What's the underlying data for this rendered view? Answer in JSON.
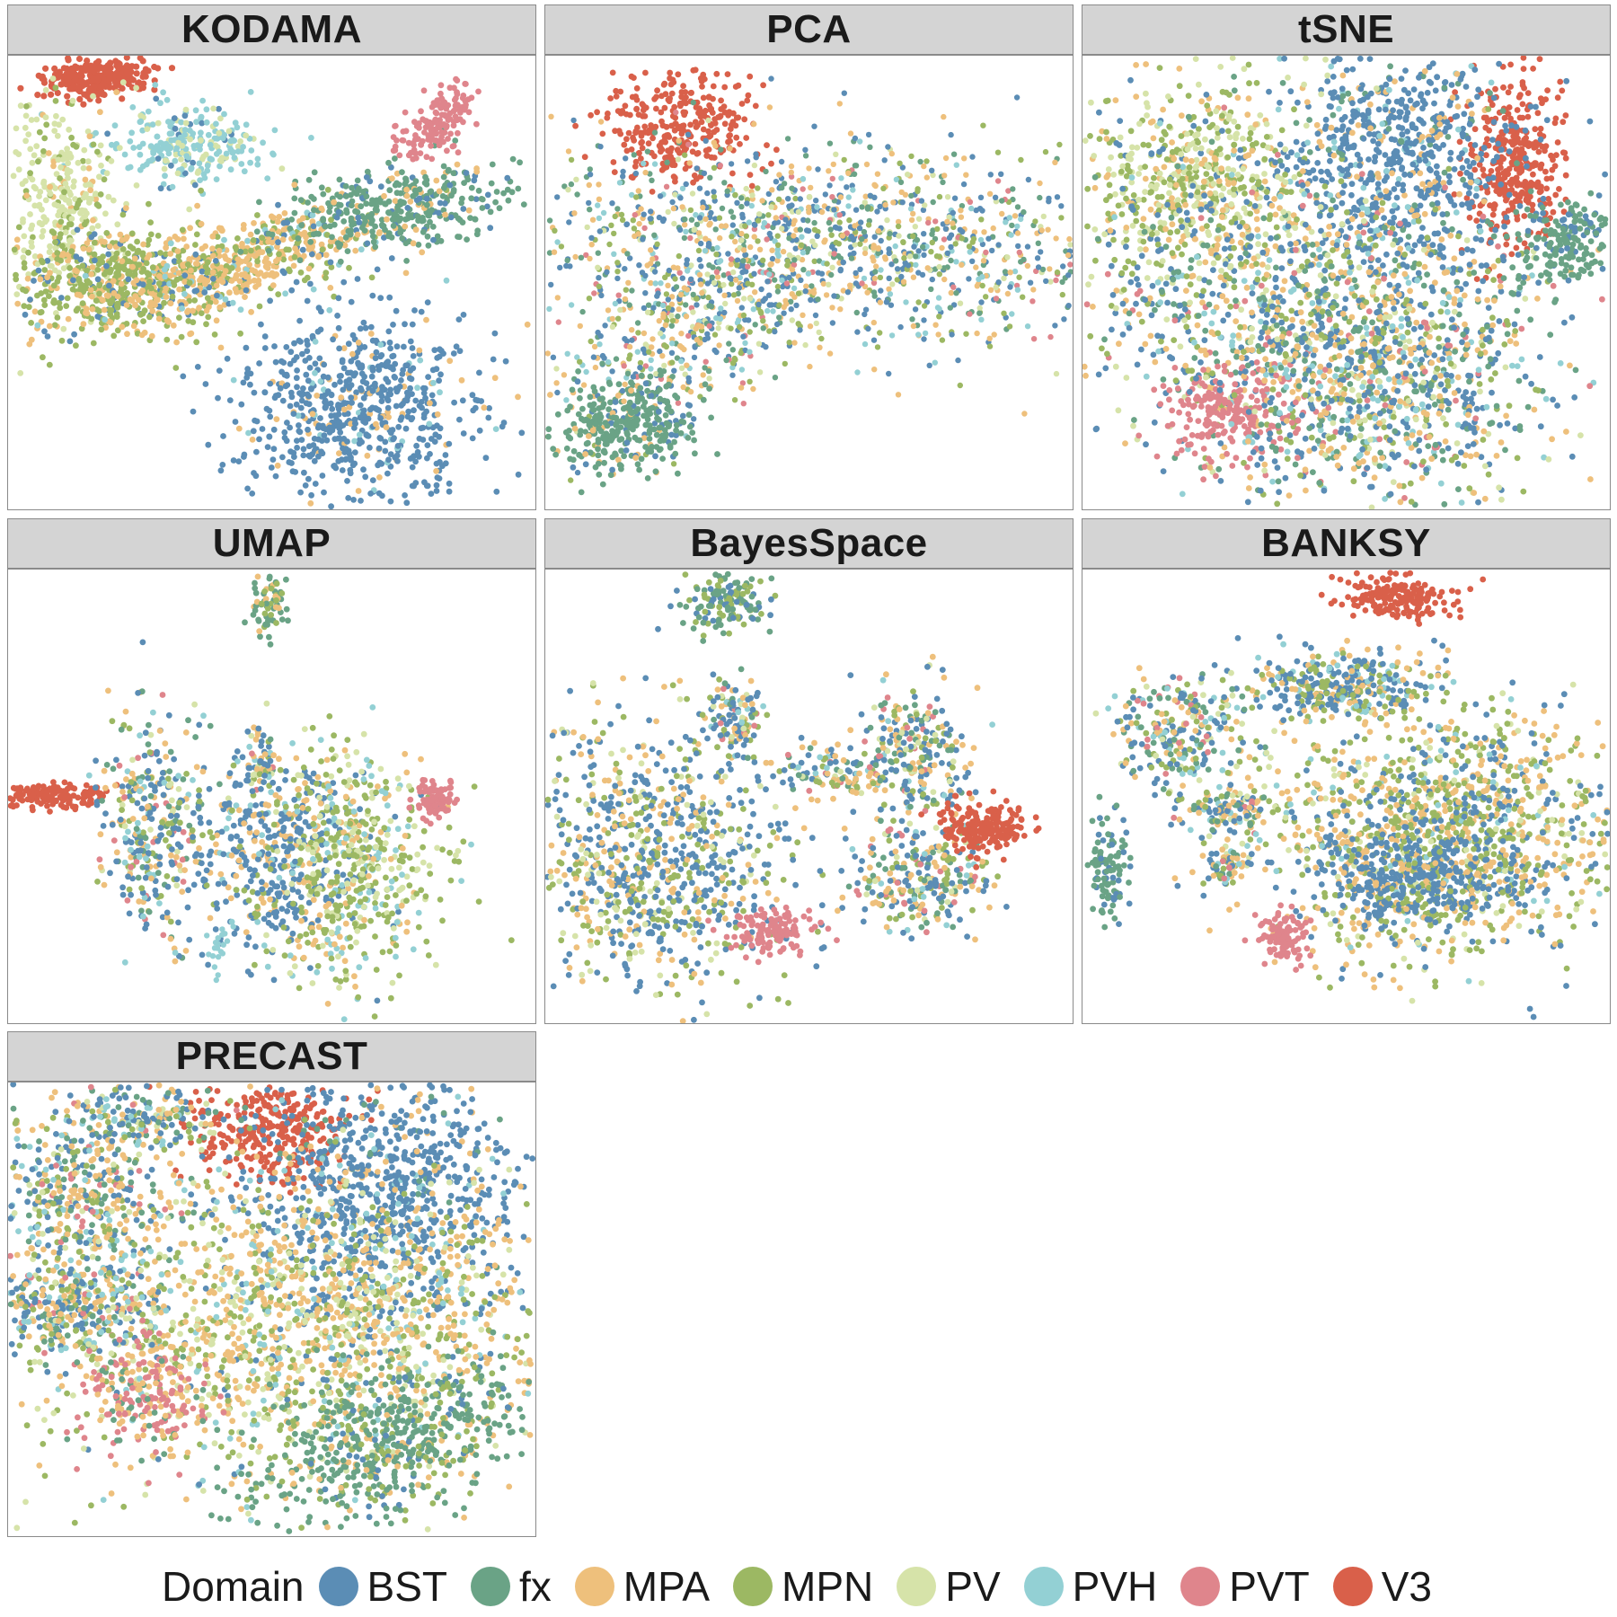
{
  "chart_data": {
    "type": "scatter",
    "figure": "faceted embedding scatter plots",
    "facets": [
      "KODAMA",
      "PCA",
      "tSNE",
      "UMAP",
      "BayesSpace",
      "BANKSY",
      "PRECAST"
    ],
    "axes": {
      "ticks": false,
      "grid": false
    },
    "legend": {
      "title": "Domain",
      "placement": "bottom",
      "entries": [
        "BST",
        "fx",
        "MPA",
        "MPN",
        "PV",
        "PVH",
        "PVT",
        "V3"
      ]
    },
    "colors": {
      "BST": "#5b8db5",
      "fx": "#6aa386",
      "MPA": "#eec07c",
      "MPN": "#9cb863",
      "PV": "#d6e3a9",
      "PVH": "#93d0d4",
      "PVT": "#df858c",
      "V3": "#d9604a"
    }
  }
}
